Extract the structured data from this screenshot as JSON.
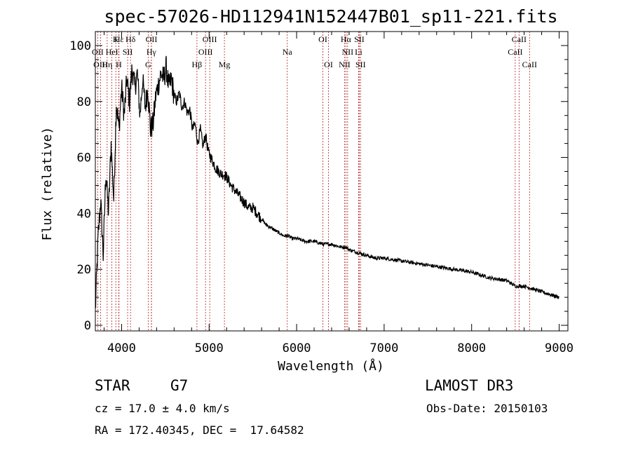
{
  "chart_data": {
    "type": "line",
    "title": "spec-57026-HD112941N152447B01_sp11-221.fits",
    "xlabel": "Wavelength (Å)",
    "ylabel": "Flux (relative)",
    "xlim": [
      3700,
      9100
    ],
    "ylim": [
      -2,
      105
    ],
    "xticks": [
      4000,
      5000,
      6000,
      7000,
      8000,
      9000
    ],
    "yticks": [
      0,
      20,
      40,
      60,
      80,
      100
    ],
    "grid": false,
    "line_color": "#000000",
    "marker_color": "#b22222",
    "series": [
      {
        "name": "flux",
        "x": [
          3700,
          3730,
          3760,
          3790,
          3820,
          3850,
          3880,
          3910,
          3940,
          3970,
          4000,
          4030,
          4060,
          4090,
          4120,
          4150,
          4180,
          4210,
          4240,
          4270,
          4300,
          4330,
          4360,
          4390,
          4420,
          4450,
          4480,
          4510,
          4540,
          4570,
          4600,
          4630,
          4660,
          4690,
          4720,
          4750,
          4780,
          4810,
          4840,
          4870,
          4900,
          4930,
          4960,
          4990,
          5020,
          5050,
          5080,
          5110,
          5140,
          5170,
          5200,
          5250,
          5300,
          5350,
          5400,
          5450,
          5500,
          5550,
          5600,
          5650,
          5700,
          5750,
          5800,
          5850,
          5900,
          5950,
          6000,
          6100,
          6200,
          6300,
          6400,
          6500,
          6560,
          6600,
          6700,
          6800,
          6900,
          7000,
          7200,
          7400,
          7600,
          7800,
          8000,
          8200,
          8400,
          8500,
          8600,
          8700,
          8800,
          8900,
          9000
        ],
        "y": [
          5,
          30,
          45,
          25,
          55,
          40,
          65,
          45,
          80,
          70,
          85,
          75,
          88,
          80,
          92,
          85,
          90,
          75,
          88,
          78,
          85,
          70,
          72,
          82,
          86,
          90,
          88,
          92,
          85,
          88,
          82,
          80,
          83,
          78,
          80,
          76,
          77,
          70,
          72,
          65,
          70,
          64,
          68,
          62,
          60,
          58,
          56,
          55,
          54,
          54,
          53,
          50,
          48,
          46,
          44,
          42,
          42,
          40,
          38,
          36,
          35,
          34,
          33,
          32,
          32,
          31,
          31,
          30,
          30,
          29,
          29,
          28,
          28,
          27,
          26,
          25,
          24,
          24,
          23,
          22,
          21,
          20,
          19,
          17,
          16,
          14,
          14,
          13,
          12,
          11,
          10
        ]
      }
    ],
    "lines": [
      {
        "name": "Hδ",
        "wl": 4102,
        "row": 1
      },
      {
        "name": "K",
        "wl": 3934,
        "row": 1
      },
      {
        "name": "Hε",
        "wl": 3970,
        "row": 1
      },
      {
        "name": "OII",
        "wl": 4341,
        "row": 1
      },
      {
        "name": "OIII",
        "wl": 5007,
        "row": 1
      },
      {
        "name": "OI",
        "wl": 6300,
        "row": 1
      },
      {
        "name": "Hα",
        "wl": 6563,
        "row": 1
      },
      {
        "name": "SII",
        "wl": 6716,
        "row": 1
      },
      {
        "name": "CaII",
        "wl": 8542,
        "row": 1
      },
      {
        "name": "OII",
        "wl": 3727,
        "row": 2
      },
      {
        "name": "HeI",
        "wl": 3889,
        "row": 2
      },
      {
        "name": "SII",
        "wl": 4069,
        "row": 2
      },
      {
        "name": "Hγ",
        "wl": 4340,
        "row": 2
      },
      {
        "name": "OIII",
        "wl": 4959,
        "row": 2
      },
      {
        "name": "Na",
        "wl": 5893,
        "row": 2
      },
      {
        "name": "NII",
        "wl": 6583,
        "row": 2
      },
      {
        "name": "Li",
        "wl": 6708,
        "row": 2
      },
      {
        "name": "CaII",
        "wl": 8498,
        "row": 2
      },
      {
        "name": "OIII",
        "wl": 3760,
        "row": 3
      },
      {
        "name": "Hη",
        "wl": 3835,
        "row": 3
      },
      {
        "name": "H",
        "wl": 3968,
        "row": 3
      },
      {
        "name": "G",
        "wl": 4304,
        "row": 3
      },
      {
        "name": "Hβ",
        "wl": 4861,
        "row": 3
      },
      {
        "name": "Mg",
        "wl": 5175,
        "row": 3
      },
      {
        "name": "OI",
        "wl": 6364,
        "row": 3
      },
      {
        "name": "NII",
        "wl": 6548,
        "row": 3
      },
      {
        "name": "SII",
        "wl": 6731,
        "row": 3
      },
      {
        "name": "CaII",
        "wl": 8662,
        "row": 3
      }
    ]
  },
  "footer": {
    "object_type": "STAR",
    "subclass": "G7",
    "survey": "LAMOST DR3",
    "redshift": "cz = 17.0 ± 4.0 km/s",
    "obs_date": "Obs-Date: 20150103",
    "coords": "RA = 172.40345, DEC =  17.64582"
  }
}
